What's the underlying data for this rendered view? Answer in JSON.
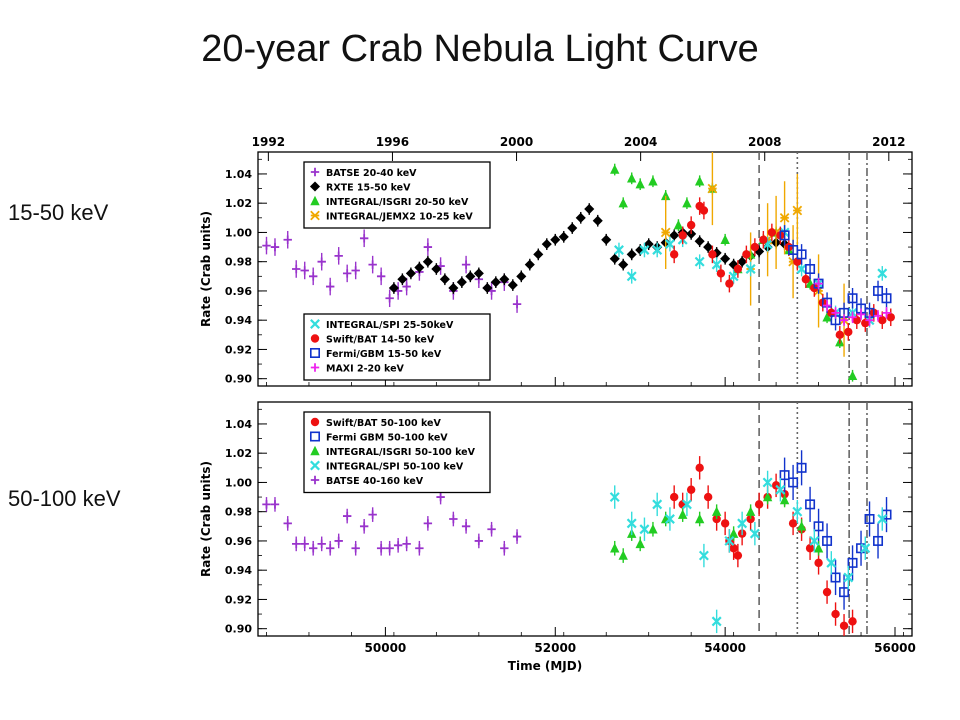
{
  "slide": {
    "title": "20-year Crab Nebula Light Curve",
    "label_top": "15-50 keV",
    "label_bottom": "50-100 keV"
  },
  "chart_data": [
    {
      "type": "scatter",
      "band": "top",
      "ylabel": "Rate (Crab units)",
      "ylim": [
        0.895,
        1.055
      ],
      "xlim": [
        48500,
        56200
      ],
      "yticks": [
        0.9,
        0.92,
        0.94,
        0.96,
        0.98,
        1.0,
        1.02,
        1.04
      ],
      "xticks_bottom": [
        50000,
        52000,
        54000,
        56000
      ],
      "year_ticks": {
        "labels": [
          "1992",
          "1996",
          "2000",
          "2004",
          "2008",
          "2012"
        ],
        "mjd": [
          48622,
          50083,
          51544,
          53005,
          54466,
          55927
        ]
      },
      "vlines": [
        {
          "mjd": 54400,
          "style": "dashed"
        },
        {
          "mjd": 54850,
          "style": "dotted"
        },
        {
          "mjd": 55460,
          "style": "dashdot"
        },
        {
          "mjd": 55670,
          "style": "dashdot"
        }
      ],
      "legends": [
        {
          "position": "top-left",
          "entries": [
            "BATSE 20-40 keV",
            "RXTE 15-50 keV",
            "INTEGRAL/ISGRI 20-50 keV",
            "INTEGRAL/JEMX2 10-25 keV"
          ]
        },
        {
          "position": "bottom-left",
          "entries": [
            "INTEGRAL/SPI 25-50keV",
            "Swift/BAT 14-50 keV",
            "Fermi/GBM 15-50 keV",
            "MAXI 2-20 keV"
          ]
        }
      ],
      "series": [
        {
          "name": "BATSE 20-40 keV",
          "color": "#9933cc",
          "marker": "plus",
          "x": [
            48600,
            48700,
            48850,
            48950,
            49050,
            49150,
            49250,
            49350,
            49450,
            49550,
            49650,
            49750,
            49850,
            49950,
            50050,
            50150,
            50250,
            50400,
            50500,
            50650,
            50800,
            50950,
            51100,
            51250,
            51400,
            51550
          ],
          "y": [
            0.991,
            0.99,
            0.995,
            0.975,
            0.974,
            0.97,
            0.98,
            0.963,
            0.984,
            0.972,
            0.974,
            0.996,
            0.978,
            0.97,
            0.955,
            0.96,
            0.963,
            0.973,
            0.99,
            0.977,
            0.96,
            0.978,
            0.968,
            0.96,
            0.966,
            0.951
          ],
          "yerr": 0.006
        },
        {
          "name": "RXTE 15-50 keV",
          "color": "#000000",
          "marker": "diamond",
          "x": [
            50100,
            50200,
            50300,
            50400,
            50500,
            50600,
            50700,
            50800,
            50900,
            51000,
            51100,
            51200,
            51300,
            51400,
            51500,
            51600,
            51700,
            51800,
            51900,
            52000,
            52100,
            52200,
            52300,
            52400,
            52500,
            52600,
            52700,
            52800,
            52900,
            53000,
            53100,
            53200,
            53300,
            53400,
            53500,
            53600,
            53700,
            53800,
            53900,
            54000,
            54100,
            54200,
            54300,
            54400,
            54500,
            54600,
            54700
          ],
          "y": [
            0.962,
            0.968,
            0.972,
            0.976,
            0.98,
            0.975,
            0.968,
            0.962,
            0.966,
            0.97,
            0.972,
            0.962,
            0.966,
            0.968,
            0.964,
            0.97,
            0.978,
            0.985,
            0.992,
            0.995,
            0.997,
            1.003,
            1.01,
            1.016,
            1.008,
            0.995,
            0.982,
            0.978,
            0.985,
            0.988,
            0.992,
            0.99,
            0.993,
            0.998,
            1.0,
            0.999,
            0.994,
            0.99,
            0.986,
            0.982,
            0.978,
            0.98,
            0.984,
            0.987,
            0.99,
            0.993,
            0.992
          ],
          "yerr": 0.004
        },
        {
          "name": "INTEGRAL/ISGRI 20-50 keV",
          "color": "#22cc22",
          "marker": "triangle",
          "x": [
            52700,
            52800,
            52900,
            53000,
            53150,
            53300,
            53450,
            53550,
            53700,
            53850,
            54000,
            54150,
            54300,
            54450,
            54600,
            54750,
            55000,
            55200,
            55350,
            55500
          ],
          "y": [
            1.043,
            1.02,
            1.037,
            1.033,
            1.035,
            1.025,
            1.005,
            1.02,
            1.035,
            1.03,
            0.995,
            0.975,
            0.985,
            0.995,
            1.0,
            0.988,
            0.965,
            0.942,
            0.925,
            0.902
          ],
          "yerr": 0.004
        },
        {
          "name": "INTEGRAL/JEMX2 10-25 keV",
          "color": "#f0a800",
          "marker": "star",
          "x": [
            53300,
            53850,
            54300,
            54500,
            54600,
            54700,
            54800,
            54850,
            55100,
            55400
          ],
          "y": [
            1.0,
            1.03,
            0.975,
            0.995,
            1.0,
            1.01,
            0.98,
            1.015,
            0.96,
            0.94
          ],
          "yerr": 0.025
        },
        {
          "name": "INTEGRAL/SPI 25-50keV",
          "color": "#33dddd",
          "marker": "x",
          "x": [
            52750,
            52900,
            53050,
            53200,
            53350,
            53500,
            53700,
            53900,
            54100,
            54300,
            54500,
            54700,
            54900,
            55100,
            55300,
            55500,
            55700,
            55850
          ],
          "y": [
            0.988,
            0.97,
            0.988,
            0.988,
            0.992,
            0.995,
            0.98,
            0.978,
            0.97,
            0.975,
            0.992,
            1.0,
            0.975,
            0.965,
            0.945,
            0.945,
            0.94,
            0.972
          ],
          "yerr": 0.005
        },
        {
          "name": "Swift/BAT 14-50 keV",
          "color": "#ee1111",
          "marker": "circle",
          "x": [
            53400,
            53500,
            53600,
            53700,
            53750,
            53850,
            53950,
            54050,
            54150,
            54250,
            54350,
            54450,
            54550,
            54650,
            54750,
            54850,
            54950,
            55050,
            55150,
            55250,
            55350,
            55450,
            55550,
            55650,
            55750,
            55850,
            55950
          ],
          "y": [
            0.985,
            0.998,
            1.005,
            1.018,
            1.015,
            0.985,
            0.972,
            0.965,
            0.975,
            0.985,
            0.99,
            0.995,
            1.0,
            0.998,
            0.99,
            0.98,
            0.968,
            0.962,
            0.952,
            0.945,
            0.93,
            0.932,
            0.94,
            0.938,
            0.945,
            0.94,
            0.942
          ],
          "yerr": 0.006
        },
        {
          "name": "Fermi/GBM 15-50 keV",
          "color": "#1133cc",
          "marker": "square",
          "x": [
            54700,
            54800,
            54900,
            55000,
            55100,
            55200,
            55300,
            55400,
            55500,
            55600,
            55700,
            55800,
            55900
          ],
          "y": [
            0.998,
            0.988,
            0.985,
            0.975,
            0.965,
            0.952,
            0.94,
            0.945,
            0.955,
            0.948,
            0.945,
            0.96,
            0.955
          ],
          "yerr": 0.007
        },
        {
          "name": "MAXI 2-20 keV",
          "color": "#ee22ee",
          "marker": "plus",
          "x": [
            55100,
            55200,
            55300,
            55400,
            55500,
            55600,
            55700,
            55800,
            55900
          ],
          "y": [
            0.965,
            0.95,
            0.945,
            0.94,
            0.942,
            0.944,
            0.94,
            0.943,
            0.945
          ],
          "yerr": 0.004
        }
      ]
    },
    {
      "type": "scatter",
      "band": "bottom",
      "ylabel": "Rate (Crab units)",
      "xlabel": "Time (MJD)",
      "ylim": [
        0.895,
        1.055
      ],
      "xlim": [
        48500,
        56200
      ],
      "yticks": [
        0.9,
        0.92,
        0.94,
        0.96,
        0.98,
        1.0,
        1.02,
        1.04
      ],
      "xticks": [
        50000,
        52000,
        54000,
        56000
      ],
      "vlines": [
        {
          "mjd": 54400,
          "style": "dashed"
        },
        {
          "mjd": 54850,
          "style": "dotted"
        },
        {
          "mjd": 55460,
          "style": "dashdot"
        },
        {
          "mjd": 55670,
          "style": "dashdot"
        }
      ],
      "legends": [
        {
          "position": "top-left",
          "entries": [
            "Swift/BAT 50-100 keV",
            "Fermi GBM 50-100 keV",
            "INTEGRAL/ISGRI 50-100 keV",
            "INTEGRAL/SPI 50-100 keV",
            "BATSE 40-160 keV"
          ]
        }
      ],
      "series": [
        {
          "name": "Swift/BAT 50-100 keV",
          "color": "#ee1111",
          "marker": "circle",
          "x": [
            53400,
            53500,
            53600,
            53700,
            53800,
            53900,
            54000,
            54050,
            54100,
            54150,
            54200,
            54300,
            54400,
            54500,
            54600,
            54700,
            54800,
            54900,
            55000,
            55100,
            55200,
            55300,
            55400,
            55500
          ],
          "y": [
            0.99,
            0.985,
            0.995,
            1.01,
            0.99,
            0.975,
            0.972,
            0.96,
            0.955,
            0.95,
            0.965,
            0.975,
            0.985,
            0.99,
            0.998,
            0.992,
            0.972,
            0.968,
            0.955,
            0.945,
            0.925,
            0.91,
            0.902,
            0.905
          ],
          "yerr": 0.008
        },
        {
          "name": "Fermi GBM 50-100 keV",
          "color": "#1133cc",
          "marker": "square",
          "x": [
            54700,
            54800,
            54900,
            55000,
            55100,
            55200,
            55300,
            55400,
            55500,
            55600,
            55700,
            55800,
            55900
          ],
          "y": [
            1.005,
            1.0,
            1.01,
            0.985,
            0.97,
            0.96,
            0.935,
            0.925,
            0.945,
            0.955,
            0.975,
            0.96,
            0.978
          ],
          "yerr": 0.012
        },
        {
          "name": "INTEGRAL/ISGRI 50-100 keV",
          "color": "#22cc22",
          "marker": "triangle",
          "x": [
            52700,
            52800,
            52900,
            53000,
            53150,
            53300,
            53500,
            53700,
            53900,
            54100,
            54300,
            54500,
            54700,
            54900,
            55100
          ],
          "y": [
            0.955,
            0.95,
            0.965,
            0.958,
            0.968,
            0.975,
            0.978,
            0.975,
            0.98,
            0.965,
            0.98,
            0.99,
            0.988,
            0.97,
            0.955
          ],
          "yerr": 0.005
        },
        {
          "name": "INTEGRAL/SPI 50-100 keV",
          "color": "#33dddd",
          "marker": "x",
          "x": [
            52700,
            52900,
            53050,
            53200,
            53350,
            53550,
            53750,
            53900,
            54050,
            54200,
            54350,
            54500,
            54650,
            54850,
            55050,
            55250,
            55450,
            55650,
            55850
          ],
          "y": [
            0.99,
            0.972,
            0.968,
            0.985,
            0.975,
            0.985,
            0.95,
            0.905,
            0.96,
            0.972,
            0.965,
            1.0,
            0.995,
            0.98,
            0.96,
            0.945,
            0.935,
            0.955,
            0.975
          ],
          "yerr": 0.008
        },
        {
          "name": "BATSE 40-160 keV",
          "color": "#9933cc",
          "marker": "plus",
          "x": [
            48600,
            48700,
            48850,
            48950,
            49050,
            49150,
            49250,
            49350,
            49450,
            49550,
            49650,
            49750,
            49850,
            49950,
            50050,
            50150,
            50250,
            50400,
            50500,
            50650,
            50800,
            50950,
            51100,
            51250,
            51400,
            51550
          ],
          "y": [
            0.985,
            0.985,
            0.972,
            0.958,
            0.958,
            0.955,
            0.958,
            0.955,
            0.96,
            0.977,
            0.955,
            0.97,
            0.978,
            0.955,
            0.955,
            0.957,
            0.958,
            0.955,
            0.972,
            0.99,
            0.975,
            0.97,
            0.96,
            0.968,
            0.955,
            0.963
          ],
          "yerr": 0.005
        }
      ]
    }
  ]
}
